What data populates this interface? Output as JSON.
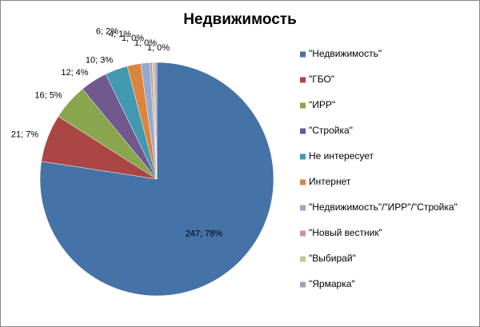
{
  "chart_data": {
    "type": "pie",
    "title": "Недвижимость",
    "categories": [
      "\"Недвижимость\"",
      "\"ГБО\"",
      "\"ИРР\"",
      "\"Стройка\"",
      "Не интересует",
      "Интернет",
      "\"Недвижимость\"/\"ИРР\"/\"Стройка\"",
      "\"Новый вестник\"",
      "\"Выбирай\"",
      "\"Ярмарка\""
    ],
    "values": [
      247,
      21,
      16,
      12,
      10,
      6,
      4,
      1,
      1,
      1
    ],
    "value_labels": [
      "247; 78%",
      "21; 7%",
      "16; 5%",
      "12; 4%",
      "10; 3%",
      "6; 2%",
      "4; 1%",
      "1; 0%",
      "1; 0%",
      "1; 0%"
    ],
    "colors": [
      "#4572A7",
      "#AA4643",
      "#89A54E",
      "#71588F",
      "#4198AF",
      "#DB843D",
      "#93A9CF",
      "#D19392",
      "#B9CD96",
      "#A99BBD"
    ],
    "legend": "right"
  }
}
